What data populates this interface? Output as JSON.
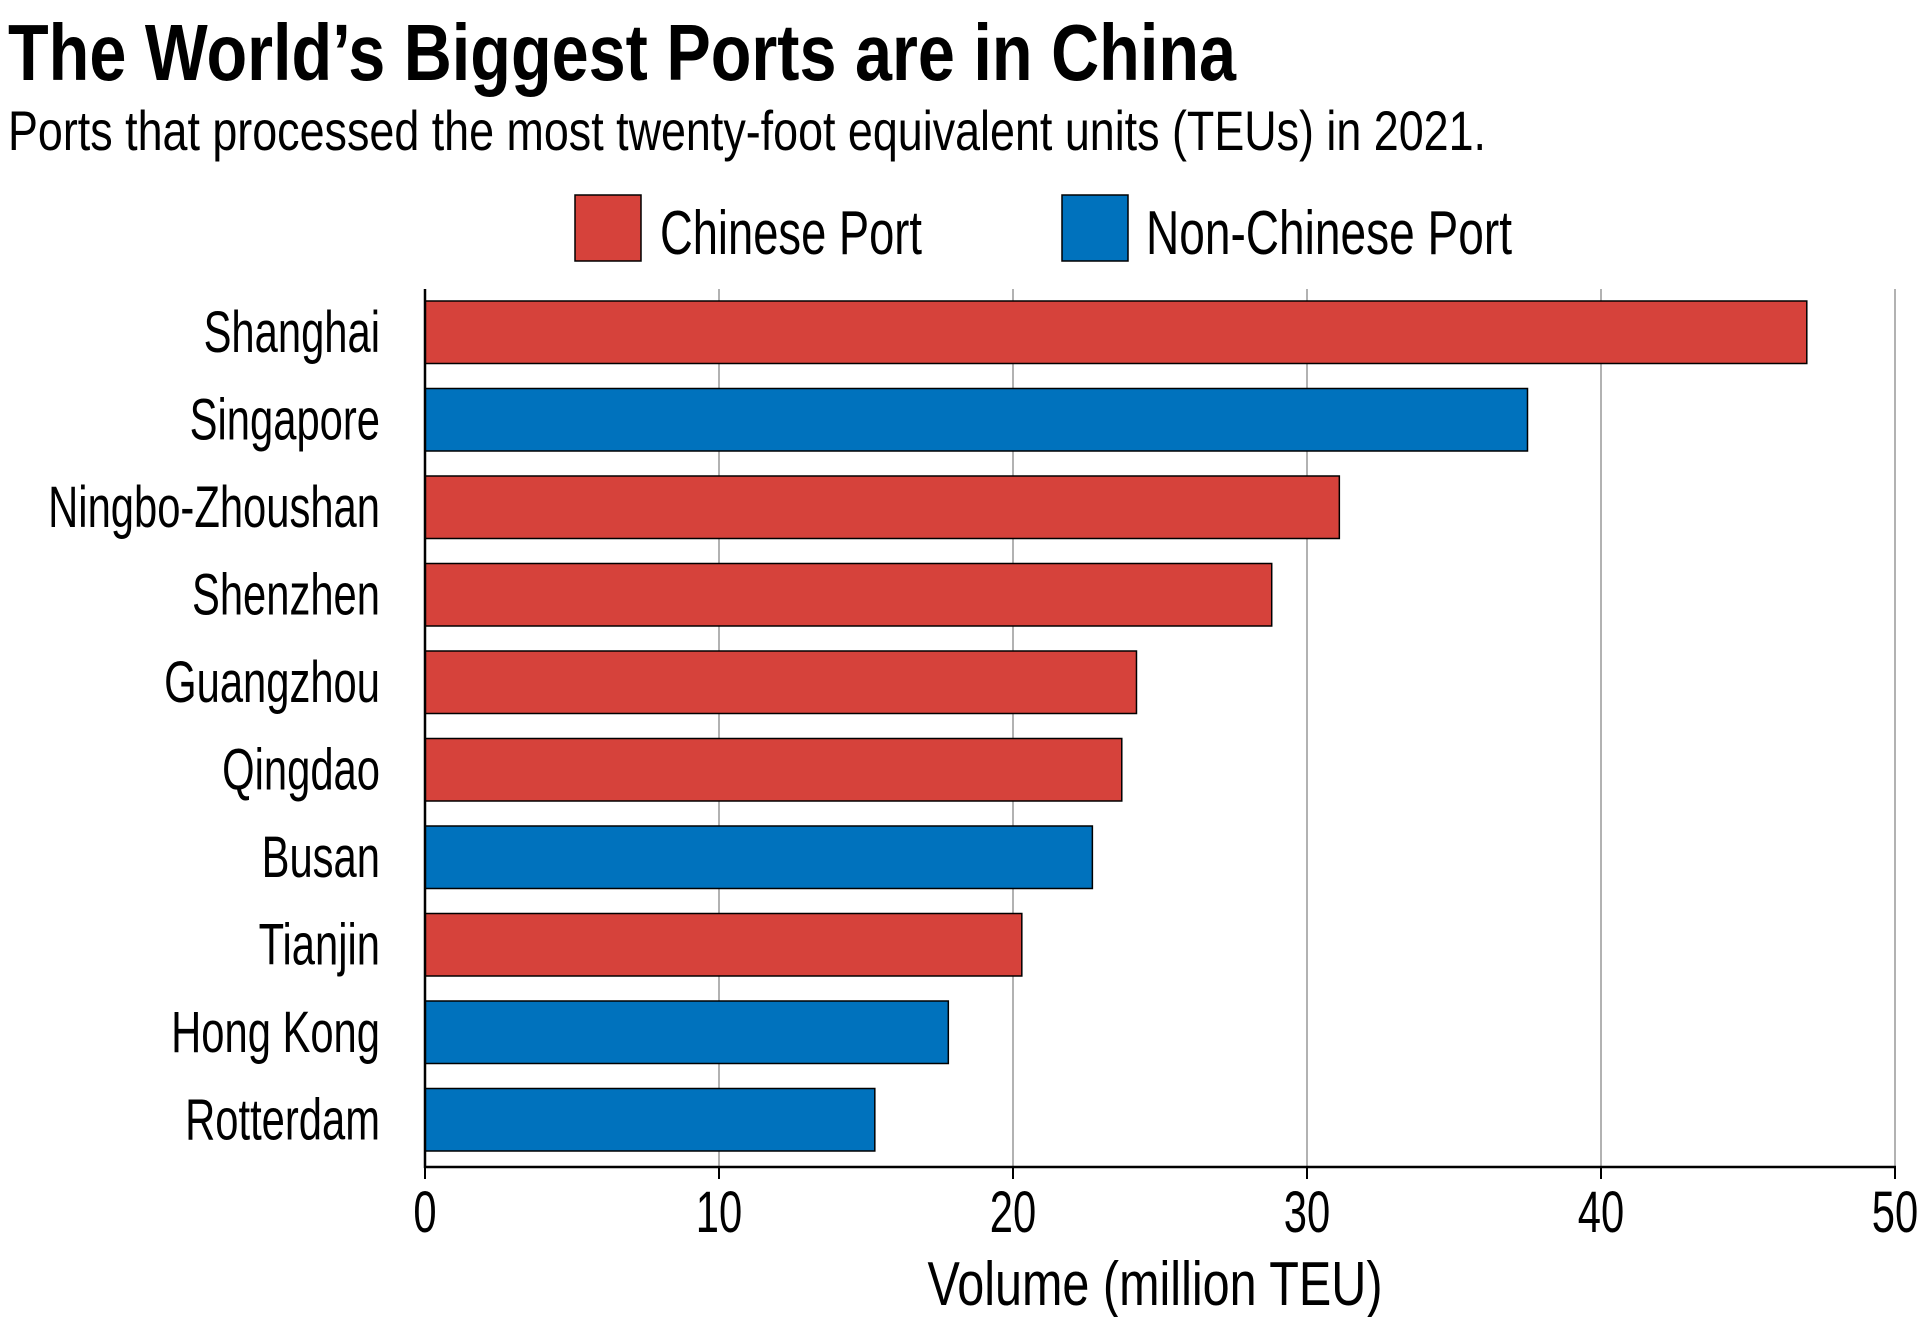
{
  "chart_data": {
    "type": "bar",
    "orientation": "horizontal",
    "title": "The World’s Biggest Ports are in China",
    "subtitle": "Ports that processed the most twenty-foot equivalent units (TEUs) in 2021.",
    "xlabel": "Volume (million TEU)",
    "ylabel": "",
    "xlim": [
      0,
      50
    ],
    "xticks": [
      "0",
      "10",
      "20",
      "30",
      "40",
      "50"
    ],
    "grid": "vertical",
    "legend_placement": "top",
    "legend": [
      {
        "name": "Chinese Port",
        "color": "#d6423b"
      },
      {
        "name": "Non-Chinese Port",
        "color": "#0072bd"
      }
    ],
    "categories": [
      "Shanghai",
      "Singapore",
      "Ningbo-Zhoushan",
      "Shenzhen",
      "Guangzhou",
      "Qingdao",
      "Busan",
      "Tianjin",
      "Hong Kong",
      "Rotterdam"
    ],
    "values": [
      47.0,
      37.5,
      31.1,
      28.8,
      24.2,
      23.7,
      22.7,
      20.3,
      17.8,
      15.3
    ],
    "group": [
      "Chinese Port",
      "Non-Chinese Port",
      "Chinese Port",
      "Chinese Port",
      "Chinese Port",
      "Chinese Port",
      "Non-Chinese Port",
      "Chinese Port",
      "Non-Chinese Port",
      "Non-Chinese Port"
    ]
  }
}
